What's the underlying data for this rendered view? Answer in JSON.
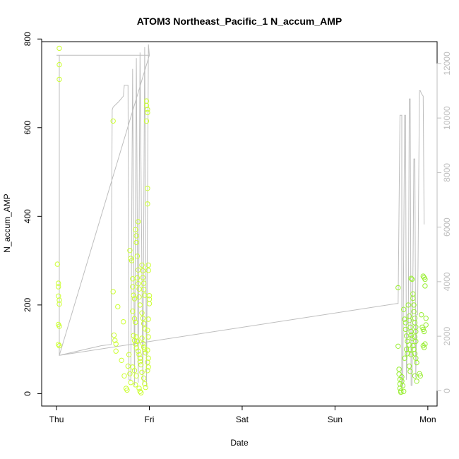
{
  "chart_data": {
    "type": "scatter",
    "title": "ATOM3 Northeast_Pacific_1 N_accum_AMP",
    "xlabel": "Date",
    "ylabel": "N_accum_AMP",
    "x_ticks": [
      "Thu",
      "Fri",
      "Sat",
      "Sun",
      "Mon"
    ],
    "xlim_days": [
      -0.16,
      4.1
    ],
    "ylim": [
      -28,
      794
    ],
    "y_ticks": [
      0,
      200,
      400,
      600,
      800
    ],
    "y2lim": [
      -560,
      12800
    ],
    "y2_ticks": [
      0,
      2000,
      4000,
      6000,
      8000,
      10000,
      12000
    ],
    "grid": false,
    "colors": {
      "points_early": "#ccff33",
      "points_late": "#99ee33",
      "line": "#bebebe"
    },
    "series": [
      {
        "type": "scatter",
        "points": [
          [
            0.01,
            292
          ],
          [
            0.02,
            249
          ],
          [
            0.02,
            241
          ],
          [
            0.02,
            220
          ],
          [
            0.03,
            211
          ],
          [
            0.03,
            202
          ],
          [
            0.02,
            156
          ],
          [
            0.03,
            152
          ],
          [
            0.02,
            111
          ],
          [
            0.03,
            108
          ],
          [
            0.03,
            779
          ],
          [
            0.03,
            742
          ],
          [
            0.03,
            709
          ],
          [
            0.61,
            615
          ],
          [
            0.61,
            230
          ],
          [
            0.62,
            132
          ],
          [
            0.63,
            120
          ],
          [
            0.64,
            112
          ],
          [
            0.64,
            96
          ],
          [
            0.66,
            196
          ],
          [
            0.7,
            75
          ],
          [
            0.72,
            162
          ],
          [
            0.73,
            40
          ],
          [
            0.75,
            12
          ],
          [
            0.76,
            8
          ],
          [
            0.77,
            62
          ],
          [
            0.78,
            88
          ],
          [
            0.79,
            45
          ],
          [
            0.8,
            25
          ],
          [
            0.79,
            323
          ],
          [
            0.8,
            305
          ],
          [
            0.81,
            300
          ],
          [
            0.82,
            259
          ],
          [
            0.82,
            241
          ],
          [
            0.83,
            222
          ],
          [
            0.84,
            214
          ],
          [
            0.82,
            186
          ],
          [
            0.84,
            169
          ],
          [
            0.85,
            161
          ],
          [
            0.83,
            131
          ],
          [
            0.84,
            120
          ],
          [
            0.85,
            112
          ],
          [
            0.86,
            103
          ],
          [
            0.82,
            60
          ],
          [
            0.84,
            52
          ],
          [
            0.86,
            40
          ],
          [
            0.85,
            20
          ],
          [
            0.85,
            370
          ],
          [
            0.86,
            356
          ],
          [
            0.86,
            341
          ],
          [
            0.87,
            310
          ],
          [
            0.88,
            279
          ],
          [
            0.87,
            261
          ],
          [
            0.88,
            248
          ],
          [
            0.89,
            236
          ],
          [
            0.89,
            218
          ],
          [
            0.9,
            200
          ],
          [
            0.86,
            128
          ],
          [
            0.87,
            118
          ],
          [
            0.88,
            96
          ],
          [
            0.89,
            88
          ],
          [
            0.9,
            80
          ],
          [
            0.9,
            72
          ],
          [
            0.91,
            65
          ],
          [
            0.89,
            12
          ],
          [
            0.9,
            5
          ],
          [
            0.91,
            2
          ],
          [
            0.88,
            388
          ],
          [
            0.92,
            290
          ],
          [
            0.93,
            277
          ],
          [
            0.93,
            262
          ],
          [
            0.94,
            249
          ],
          [
            0.94,
            235
          ],
          [
            0.95,
            222
          ],
          [
            0.92,
            182
          ],
          [
            0.93,
            170
          ],
          [
            0.94,
            158
          ],
          [
            0.95,
            146
          ],
          [
            0.92,
            125
          ],
          [
            0.93,
            113
          ],
          [
            0.94,
            105
          ],
          [
            0.95,
            100
          ],
          [
            0.96,
            92
          ],
          [
            0.92,
            48
          ],
          [
            0.94,
            35
          ],
          [
            0.95,
            22
          ],
          [
            0.96,
            14
          ],
          [
            0.97,
            660
          ],
          [
            0.97,
            650
          ],
          [
            0.98,
            641
          ],
          [
            0.98,
            634
          ],
          [
            0.97,
            615
          ],
          [
            0.98,
            463
          ],
          [
            0.98,
            428
          ],
          [
            0.99,
            290
          ],
          [
            0.99,
            278
          ],
          [
            1.0,
            221
          ],
          [
            1.0,
            213
          ],
          [
            1.0,
            203
          ],
          [
            0.99,
            168
          ],
          [
            0.98,
            143
          ],
          [
            0.99,
            128
          ],
          [
            0.98,
            98
          ],
          [
            0.99,
            80
          ],
          [
            0.98,
            71
          ],
          [
            0.99,
            60
          ],
          [
            0.98,
            52
          ]
        ]
      },
      {
        "type": "scatter",
        "points": [
          [
            3.68,
            239
          ],
          [
            3.68,
            107
          ],
          [
            3.69,
            55
          ],
          [
            3.69,
            44
          ],
          [
            3.7,
            32
          ],
          [
            3.7,
            22
          ],
          [
            3.7,
            12
          ],
          [
            3.71,
            6
          ],
          [
            3.71,
            3
          ],
          [
            3.72,
            28
          ],
          [
            3.72,
            38
          ],
          [
            3.73,
            18
          ],
          [
            3.74,
            5
          ],
          [
            3.74,
            190
          ],
          [
            3.75,
            168
          ],
          [
            3.76,
            160
          ],
          [
            3.76,
            145
          ],
          [
            3.77,
            130
          ],
          [
            3.78,
            118
          ],
          [
            3.75,
            80
          ],
          [
            3.77,
            100
          ],
          [
            3.78,
            90
          ],
          [
            3.79,
            200
          ],
          [
            3.8,
            175
          ],
          [
            3.8,
            165
          ],
          [
            3.81,
            150
          ],
          [
            3.82,
            140
          ],
          [
            3.82,
            132
          ],
          [
            3.83,
            125
          ],
          [
            3.8,
            110
          ],
          [
            3.81,
            100
          ],
          [
            3.82,
            88
          ],
          [
            3.8,
            62
          ],
          [
            3.81,
            50
          ],
          [
            3.82,
            260
          ],
          [
            3.83,
            258
          ],
          [
            3.84,
            225
          ],
          [
            3.84,
            215
          ],
          [
            3.85,
            200
          ],
          [
            3.85,
            185
          ],
          [
            3.86,
            170
          ],
          [
            3.86,
            160
          ],
          [
            3.87,
            150
          ],
          [
            3.87,
            140
          ],
          [
            3.86,
            128
          ],
          [
            3.87,
            118
          ],
          [
            3.84,
            108
          ],
          [
            3.85,
            100
          ],
          [
            3.86,
            90
          ],
          [
            3.87,
            80
          ],
          [
            3.88,
            70
          ],
          [
            3.86,
            40
          ],
          [
            3.88,
            28
          ],
          [
            3.91,
            45
          ],
          [
            3.92,
            40
          ],
          [
            3.93,
            178
          ],
          [
            3.94,
            150
          ],
          [
            3.95,
            145
          ],
          [
            3.96,
            140
          ],
          [
            3.95,
            108
          ],
          [
            3.96,
            104
          ],
          [
            3.97,
            112
          ],
          [
            3.95,
            265
          ],
          [
            3.96,
            262
          ],
          [
            3.97,
            258
          ],
          [
            3.97,
            243
          ],
          [
            3.98,
            170
          ],
          [
            3.98,
            155
          ]
        ]
      },
      {
        "type": "line",
        "axis": "right",
        "points": [
          [
            0.0,
            12300
          ],
          [
            0.03,
            12300
          ],
          [
            0.03,
            1300
          ],
          [
            0.48,
            1650
          ],
          [
            0.59,
            1700
          ],
          [
            0.59,
            4500
          ],
          [
            0.6,
            10300
          ],
          [
            0.61,
            10400
          ],
          [
            0.67,
            10600
          ],
          [
            0.72,
            10800
          ],
          [
            0.73,
            11200
          ],
          [
            0.77,
            11200
          ],
          [
            0.78,
            400
          ],
          [
            0.8,
            400
          ],
          [
            0.82,
            11800
          ],
          [
            0.84,
            200
          ],
          [
            0.86,
            12200
          ],
          [
            0.88,
            300
          ],
          [
            0.9,
            12400
          ],
          [
            0.93,
            200
          ],
          [
            0.95,
            12600
          ],
          [
            0.97,
            150
          ],
          [
            0.99,
            12700
          ],
          [
            1.0,
            12300
          ],
          [
            0.03,
            12300
          ],
          [
            1.0,
            12300
          ],
          [
            0.03,
            1300
          ],
          [
            3.67,
            3200
          ],
          [
            3.68,
            3200
          ],
          [
            3.7,
            10100
          ],
          [
            3.72,
            10100
          ],
          [
            3.72,
            100
          ],
          [
            3.73,
            200
          ],
          [
            3.75,
            10100
          ],
          [
            3.76,
            10100
          ],
          [
            3.77,
            400
          ],
          [
            3.78,
            2200
          ],
          [
            3.79,
            2200
          ],
          [
            3.8,
            10700
          ],
          [
            3.81,
            10700
          ],
          [
            3.82,
            200
          ],
          [
            3.83,
            200
          ],
          [
            3.85,
            8500
          ],
          [
            3.86,
            8500
          ],
          [
            3.87,
            500
          ],
          [
            3.88,
            2800
          ],
          [
            3.89,
            2800
          ],
          [
            3.91,
            11000
          ],
          [
            3.92,
            11000
          ],
          [
            3.93,
            10900
          ],
          [
            3.95,
            10800
          ],
          [
            3.96,
            6100
          ]
        ]
      }
    ]
  }
}
